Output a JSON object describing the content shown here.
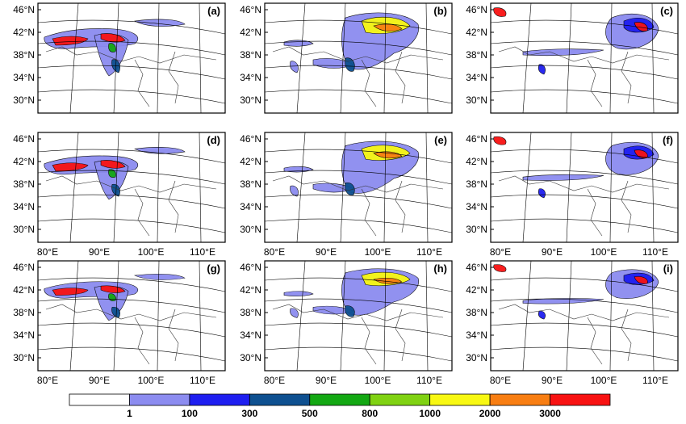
{
  "panels": [
    {
      "label": "(a)",
      "lat_labels": [
        "46°N",
        "42°N",
        "38°N",
        "34°N",
        "30°N"
      ],
      "lon_labels": []
    },
    {
      "label": "(b)",
      "lat_labels": [
        "46°N",
        "42°N",
        "38°N",
        "34°N",
        "30°N"
      ],
      "lon_labels": []
    },
    {
      "label": "(c)",
      "lat_labels": [
        "46°N",
        "42°N",
        "38°N",
        "34°N",
        "30°N"
      ],
      "lon_labels": []
    },
    {
      "label": "(d)",
      "lat_labels": [
        "46°N",
        "42°N",
        "38°N",
        "34°N",
        "30°N"
      ],
      "lon_labels": [
        "80°E",
        "90°E",
        "100°E",
        "110°E"
      ]
    },
    {
      "label": "(e)",
      "lat_labels": [
        "46°N",
        "42°N",
        "38°N",
        "34°N",
        "30°N"
      ],
      "lon_labels": [
        "80°E",
        "90°E",
        "100°E",
        "110°E"
      ]
    },
    {
      "label": "(f)",
      "lat_labels": [
        "46°N",
        "42°N",
        "38°N",
        "34°N",
        "30°N"
      ],
      "lon_labels": [
        "80°E",
        "90°E",
        "100°E",
        "110°E"
      ]
    },
    {
      "label": "(g)",
      "lat_labels": [
        "46°N",
        "42°N",
        "38°N",
        "34°N",
        "30°N"
      ],
      "lon_labels": [
        "80°E",
        "90°E",
        "100°E",
        "110°E"
      ]
    },
    {
      "label": "(h)",
      "lat_labels": [
        "46°N",
        "42°N",
        "38°N",
        "34°N",
        "30°N"
      ],
      "lon_labels": [
        "80°E",
        "90°E",
        "100°E",
        "110°E"
      ]
    },
    {
      "label": "(i)",
      "lat_labels": [
        "46°N",
        "42°N",
        "38°N",
        "34°N",
        "30°N"
      ],
      "lon_labels": [
        "80°E",
        "90°E",
        "100°E",
        "110°E"
      ]
    }
  ],
  "colorbar": {
    "colors": [
      "#ffffff",
      "#8c8cf0",
      "#1e1ef0",
      "#0e5090",
      "#13a813",
      "#80d212",
      "#f8f812",
      "#f87e12",
      "#f81212"
    ],
    "labels": [
      "1",
      "100",
      "300",
      "500",
      "800",
      "1000",
      "2000",
      "3000"
    ]
  }
}
